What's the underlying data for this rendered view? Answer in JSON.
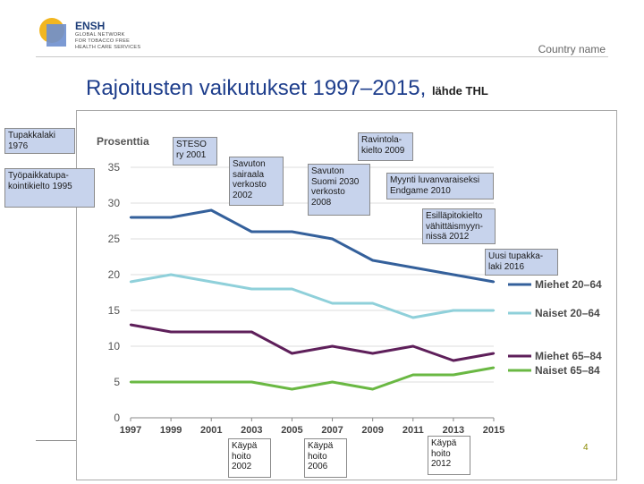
{
  "header": {
    "brand": "ENSH",
    "brand_sub": [
      "GLOBAL NETWORK",
      "FOR TOBACCO FREE",
      "HEALTH CARE SERVICES"
    ],
    "country": "Country name"
  },
  "title": {
    "main": "Rajoitusten vaikutukset 1997–2015,",
    "source": "lähde THL"
  },
  "annotations": {
    "tupakkalaki": "Tupakkalaki 1976",
    "tyopaikka": "Työpaikkatupa-kointikielto 1995",
    "steso": "STESO ry 2001",
    "savuton_sairaala": "Savuton sairaala verkosto 2002",
    "ravintola": "Ravintola-kielto 2009",
    "savuton_suomi": "Savuton Suomi 2030 verkosto 2008",
    "myynti": "Myynti luvanvaraiseksi Endgame 2010",
    "esillapito": "Esilläpitokielto vähittäismyyn-nissä 2012",
    "uusi_tupakkalaki": "Uusi tupakka-laki 2016",
    "kaypa_2002": "Käypä hoito 2002",
    "kaypa_2006": "Käypä hoito 2006",
    "kaypa_2012": "Käypä hoito 2012"
  },
  "page_number": "4",
  "colors": {
    "title": "#1e3e8c",
    "box_fill": "#c7d3ec",
    "miehet_20_64": "#34609b",
    "naiset_20_64": "#8fd0da",
    "miehet_65_84": "#5e1f5a",
    "naiset_65_84": "#6ab843"
  },
  "chart_data": {
    "type": "line",
    "title": "Prosenttia",
    "ylabel": "Prosenttia",
    "xlabel": "",
    "x": [
      1997,
      1999,
      2001,
      2003,
      2005,
      2007,
      2009,
      2011,
      2013,
      2015
    ],
    "xticks": [
      "1997",
      "1999",
      "2001",
      "2003",
      "2005",
      "2007",
      "2009",
      "2011",
      "2013",
      "2015"
    ],
    "yticks": [
      "0",
      "5",
      "10",
      "15",
      "20",
      "25",
      "30",
      "35"
    ],
    "ylim": [
      0,
      35
    ],
    "series": [
      {
        "name": "Miehet 20–64",
        "color": "#34609b",
        "points": [
          [
            1997,
            28
          ],
          [
            1999,
            28
          ],
          [
            2001,
            29
          ],
          [
            2003,
            26
          ],
          [
            2005,
            26
          ],
          [
            2007,
            25
          ],
          [
            2009,
            22
          ],
          [
            2011,
            21
          ],
          [
            2013,
            20
          ],
          [
            2015,
            19
          ]
        ]
      },
      {
        "name": "Naiset 20–64",
        "color": "#8fd0da",
        "points": [
          [
            1997,
            19
          ],
          [
            1999,
            20
          ],
          [
            2001,
            19
          ],
          [
            2003,
            18
          ],
          [
            2005,
            18
          ],
          [
            2007,
            16
          ],
          [
            2009,
            16
          ],
          [
            2011,
            14
          ],
          [
            2013,
            15
          ],
          [
            2015,
            15
          ]
        ]
      },
      {
        "name": "Miehet 65–84",
        "color": "#5e1f5a",
        "points": [
          [
            1997,
            13
          ],
          [
            1999,
            12
          ],
          [
            2001,
            12
          ],
          [
            2003,
            12
          ],
          [
            2005,
            9
          ],
          [
            2007,
            10
          ],
          [
            2009,
            9
          ],
          [
            2011,
            10
          ],
          [
            2013,
            8
          ],
          [
            2015,
            9
          ]
        ]
      },
      {
        "name": "Naiset 65–84",
        "color": "#6ab843",
        "points": [
          [
            1997,
            5
          ],
          [
            1999,
            5
          ],
          [
            2001,
            5
          ],
          [
            2003,
            5
          ],
          [
            2005,
            4
          ],
          [
            2007,
            5
          ],
          [
            2009,
            4
          ],
          [
            2011,
            6
          ],
          [
            2013,
            6
          ],
          [
            2015,
            7
          ]
        ]
      }
    ]
  }
}
